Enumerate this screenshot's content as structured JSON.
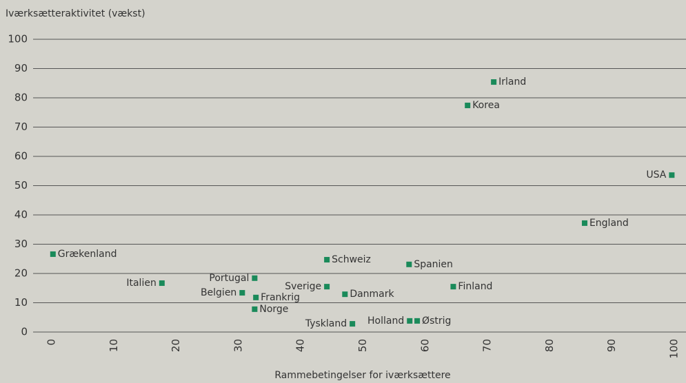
{
  "chart_data": {
    "type": "scatter",
    "y_axis_label": "Iværksætteraktivitet (vækst)",
    "x_axis_label": "Rammebetingelser for iværksættere",
    "labels": [
      "Irland",
      "Korea",
      "USA",
      "England",
      "Grækenland",
      "Schweiz",
      "Spanien",
      "Finland",
      "Italien",
      "Portugal",
      "Belgien",
      "Frankrig",
      "Norge",
      "Sverige",
      "Danmark",
      "Tyskland",
      "Holland",
      "Østrig"
    ],
    "x": [
      71.0,
      66.8,
      99.6,
      85.6,
      0.2,
      44.2,
      57.4,
      64.5,
      17.7,
      32.6,
      30.6,
      32.8,
      32.6,
      44.2,
      47.1,
      48.3,
      57.5,
      58.7
    ],
    "values": [
      85.4,
      77.4,
      53.6,
      37.2,
      26.6,
      24.7,
      23.1,
      15.5,
      16.7,
      18.4,
      13.4,
      11.8,
      7.8,
      15.5,
      12.9,
      2.8,
      3.8,
      3.8
    ],
    "color": "#1a8a5a",
    "xlim": [
      0,
      100
    ],
    "xticks": [
      0,
      10,
      20,
      30,
      40,
      50,
      60,
      70,
      80,
      90,
      100
    ],
    "ylim": [
      0,
      100
    ],
    "yticks": [
      0,
      10,
      20,
      30,
      40,
      50,
      60,
      70,
      80,
      90,
      100
    ],
    "grid": true
  }
}
